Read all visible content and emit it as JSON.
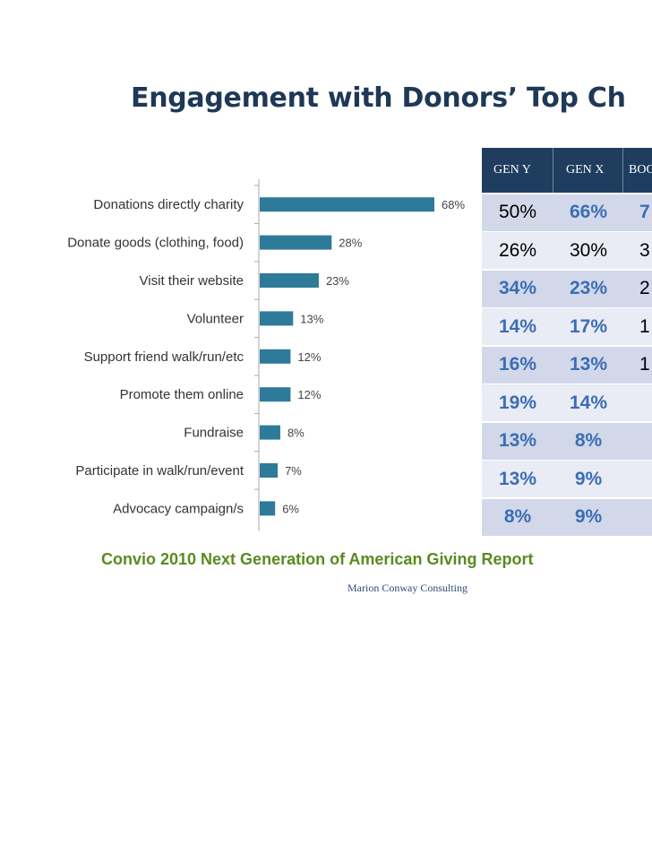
{
  "page": {
    "title": "Engagement with Donors’ Top Ch",
    "source": "Convio 2010 Next Generation of American Giving Report",
    "footer": "Marion Conway Consulting",
    "bar_color": "#2e7a99"
  },
  "chart_data": {
    "type": "bar",
    "orientation": "horizontal",
    "categories": [
      "Donations directly charity",
      "Donate goods (clothing, food)",
      "Visit their website",
      "Volunteer",
      "Support friend walk/run/etc",
      "Promote them online",
      "Fundraise",
      "Participate in walk/run/event",
      "Advocacy campaign/s"
    ],
    "values": [
      68,
      28,
      23,
      13,
      12,
      12,
      8,
      7,
      6
    ],
    "value_labels": [
      "68%",
      "28%",
      "23%",
      "13%",
      "12%",
      "12%",
      "8%",
      "7%",
      "6%"
    ],
    "xlim": [
      0,
      100
    ],
    "grid": false,
    "legend": "none"
  },
  "table": {
    "headers": [
      "GEN Y",
      "GEN X",
      "BOO"
    ],
    "rows": [
      {
        "cells": [
          "50%",
          "66%",
          "7"
        ],
        "blue": [
          false,
          true,
          true
        ]
      },
      {
        "cells": [
          "26%",
          "30%",
          "3"
        ],
        "blue": [
          false,
          false,
          false
        ]
      },
      {
        "cells": [
          "34%",
          "23%",
          "2"
        ],
        "blue": [
          true,
          true,
          false
        ]
      },
      {
        "cells": [
          "14%",
          "17%",
          "1"
        ],
        "blue": [
          true,
          true,
          false
        ]
      },
      {
        "cells": [
          "16%",
          "13%",
          "1"
        ],
        "blue": [
          true,
          true,
          false
        ]
      },
      {
        "cells": [
          "19%",
          "14%",
          ""
        ],
        "blue": [
          true,
          true,
          false
        ]
      },
      {
        "cells": [
          "13%",
          "8%",
          ""
        ],
        "blue": [
          true,
          true,
          false
        ]
      },
      {
        "cells": [
          "13%",
          "9%",
          ""
        ],
        "blue": [
          true,
          true,
          false
        ]
      },
      {
        "cells": [
          "8%",
          "9%",
          ""
        ],
        "blue": [
          true,
          true,
          false
        ]
      }
    ]
  }
}
